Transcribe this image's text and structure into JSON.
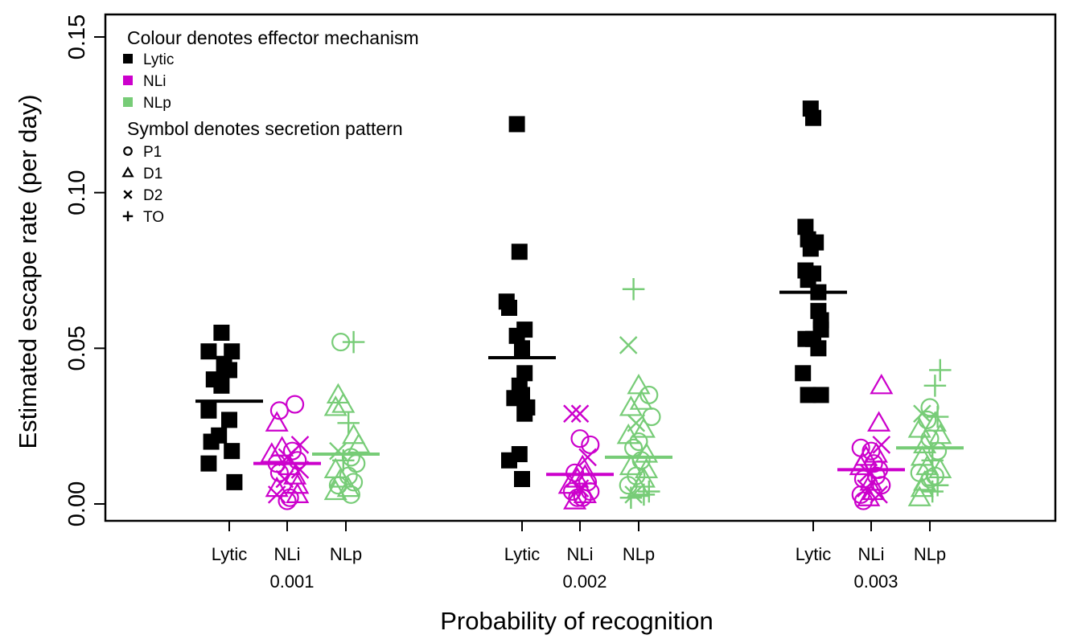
{
  "chart_data": {
    "type": "scatter",
    "ylabel": "Estimated escape rate (per day)",
    "xlabel": "Probability of recognition",
    "ylim": [
      0,
      0.15
    ],
    "y_ticks": [
      "0.00",
      "0.05",
      "0.10",
      "0.15"
    ],
    "groups": [
      "0.001",
      "0.002",
      "0.003"
    ],
    "mechanisms": [
      "Lytic",
      "NLi",
      "NLp"
    ],
    "colors": {
      "Lytic": "#000000",
      "NLi": "#cc00cc",
      "NLp": "#77cc77"
    },
    "legend": {
      "placement": "top-left",
      "colour_title": "Colour denotes effector mechanism",
      "colour_items": [
        "Lytic",
        "NLi",
        "NLp"
      ],
      "symbol_title": "Symbol denotes secretion pattern",
      "symbol_items": [
        {
          "label": "P1",
          "symbol": "circle"
        },
        {
          "label": "D1",
          "symbol": "triangle"
        },
        {
          "label": "D2",
          "symbol": "cross"
        },
        {
          "label": "TO",
          "symbol": "plus"
        }
      ]
    },
    "series": [
      {
        "group": "0.001",
        "mechanism": "Lytic",
        "mean": 0.033,
        "points": [
          {
            "x": -0.3,
            "y": 0.055,
            "s": "square"
          },
          {
            "x": -0.8,
            "y": 0.049,
            "s": "square"
          },
          {
            "x": 0.1,
            "y": 0.049,
            "s": "square"
          },
          {
            "x": -0.2,
            "y": 0.045,
            "s": "square"
          },
          {
            "x": 0.0,
            "y": 0.043,
            "s": "square"
          },
          {
            "x": -0.6,
            "y": 0.04,
            "s": "square"
          },
          {
            "x": -0.3,
            "y": 0.038,
            "s": "square"
          },
          {
            "x": -0.8,
            "y": 0.03,
            "s": "square"
          },
          {
            "x": 0.0,
            "y": 0.027,
            "s": "square"
          },
          {
            "x": -0.4,
            "y": 0.022,
            "s": "square"
          },
          {
            "x": -0.7,
            "y": 0.02,
            "s": "square"
          },
          {
            "x": 0.1,
            "y": 0.017,
            "s": "square"
          },
          {
            "x": -0.8,
            "y": 0.013,
            "s": "square"
          },
          {
            "x": 0.2,
            "y": 0.007,
            "s": "square"
          }
        ]
      },
      {
        "group": "0.001",
        "mechanism": "NLi",
        "mean": 0.013,
        "points": [
          {
            "x": 0.3,
            "y": 0.032,
            "s": "circle"
          },
          {
            "x": -0.3,
            "y": 0.03,
            "s": "circle"
          },
          {
            "x": -0.4,
            "y": 0.026,
            "s": "triangle"
          },
          {
            "x": 0.5,
            "y": 0.019,
            "s": "cross"
          },
          {
            "x": -0.2,
            "y": 0.018,
            "s": "triangle"
          },
          {
            "x": 0.2,
            "y": 0.017,
            "s": "circle"
          },
          {
            "x": -0.6,
            "y": 0.016,
            "s": "triangle"
          },
          {
            "x": 0.0,
            "y": 0.015,
            "s": "cross"
          },
          {
            "x": 0.4,
            "y": 0.014,
            "s": "circle"
          },
          {
            "x": -0.4,
            "y": 0.013,
            "s": "circle"
          },
          {
            "x": 0.1,
            "y": 0.012,
            "s": "triangle"
          },
          {
            "x": 0.5,
            "y": 0.011,
            "s": "cross"
          },
          {
            "x": -0.3,
            "y": 0.01,
            "s": "circle"
          },
          {
            "x": 0.3,
            "y": 0.009,
            "s": "triangle"
          },
          {
            "x": -0.1,
            "y": 0.008,
            "s": "cross"
          },
          {
            "x": 0.4,
            "y": 0.006,
            "s": "triangle"
          },
          {
            "x": -0.4,
            "y": 0.005,
            "s": "triangle"
          },
          {
            "x": -0.4,
            "y": 0.003,
            "s": "cross"
          },
          {
            "x": 0.4,
            "y": 0.003,
            "s": "triangle"
          },
          {
            "x": 0.1,
            "y": 0.002,
            "s": "circle"
          },
          {
            "x": 0.0,
            "y": 0.001,
            "s": "circle"
          }
        ]
      },
      {
        "group": "0.001",
        "mechanism": "NLp",
        "mean": 0.016,
        "points": [
          {
            "x": -0.2,
            "y": 0.052,
            "s": "circle"
          },
          {
            "x": 0.3,
            "y": 0.052,
            "s": "plus"
          },
          {
            "x": -0.3,
            "y": 0.035,
            "s": "triangle"
          },
          {
            "x": -0.1,
            "y": 0.032,
            "s": "triangle"
          },
          {
            "x": -0.4,
            "y": 0.031,
            "s": "triangle"
          },
          {
            "x": 0.1,
            "y": 0.026,
            "s": "plus"
          },
          {
            "x": 0.3,
            "y": 0.022,
            "s": "triangle"
          },
          {
            "x": 0.5,
            "y": 0.019,
            "s": "triangle"
          },
          {
            "x": -0.3,
            "y": 0.017,
            "s": "cross"
          },
          {
            "x": 0.2,
            "y": 0.015,
            "s": "circle"
          },
          {
            "x": -0.1,
            "y": 0.014,
            "s": "plus"
          },
          {
            "x": 0.4,
            "y": 0.013,
            "s": "circle"
          },
          {
            "x": -0.4,
            "y": 0.011,
            "s": "triangle"
          },
          {
            "x": 0.1,
            "y": 0.009,
            "s": "circle"
          },
          {
            "x": -0.2,
            "y": 0.008,
            "s": "triangle"
          },
          {
            "x": 0.3,
            "y": 0.007,
            "s": "circle"
          },
          {
            "x": -0.3,
            "y": 0.006,
            "s": "circle"
          },
          {
            "x": 0.1,
            "y": 0.005,
            "s": "triangle"
          },
          {
            "x": -0.4,
            "y": 0.004,
            "s": "triangle"
          },
          {
            "x": 0.2,
            "y": 0.003,
            "s": "circle"
          }
        ]
      },
      {
        "group": "0.002",
        "mechanism": "Lytic",
        "mean": 0.047,
        "points": [
          {
            "x": -0.2,
            "y": 0.122,
            "s": "square"
          },
          {
            "x": -0.1,
            "y": 0.081,
            "s": "square"
          },
          {
            "x": -0.6,
            "y": 0.065,
            "s": "square"
          },
          {
            "x": -0.5,
            "y": 0.063,
            "s": "square"
          },
          {
            "x": 0.1,
            "y": 0.056,
            "s": "square"
          },
          {
            "x": -0.2,
            "y": 0.054,
            "s": "square"
          },
          {
            "x": 0.0,
            "y": 0.05,
            "s": "square"
          },
          {
            "x": 0.1,
            "y": 0.042,
            "s": "square"
          },
          {
            "x": -0.1,
            "y": 0.038,
            "s": "square"
          },
          {
            "x": 0.0,
            "y": 0.035,
            "s": "square"
          },
          {
            "x": -0.3,
            "y": 0.034,
            "s": "square"
          },
          {
            "x": 0.2,
            "y": 0.031,
            "s": "square"
          },
          {
            "x": 0.1,
            "y": 0.029,
            "s": "square"
          },
          {
            "x": -0.1,
            "y": 0.016,
            "s": "square"
          },
          {
            "x": -0.5,
            "y": 0.014,
            "s": "square"
          },
          {
            "x": 0.0,
            "y": 0.008,
            "s": "square"
          }
        ]
      },
      {
        "group": "0.002",
        "mechanism": "NLi",
        "mean": 0.0095,
        "points": [
          {
            "x": -0.3,
            "y": 0.029,
            "s": "cross"
          },
          {
            "x": 0.0,
            "y": 0.029,
            "s": "cross"
          },
          {
            "x": 0.0,
            "y": 0.021,
            "s": "circle"
          },
          {
            "x": 0.4,
            "y": 0.019,
            "s": "circle"
          },
          {
            "x": 0.3,
            "y": 0.015,
            "s": "cross"
          },
          {
            "x": 0.1,
            "y": 0.012,
            "s": "triangle"
          },
          {
            "x": -0.2,
            "y": 0.01,
            "s": "circle"
          },
          {
            "x": 0.2,
            "y": 0.009,
            "s": "triangle"
          },
          {
            "x": -0.1,
            "y": 0.008,
            "s": "triangle"
          },
          {
            "x": 0.3,
            "y": 0.007,
            "s": "circle"
          },
          {
            "x": -0.4,
            "y": 0.006,
            "s": "triangle"
          },
          {
            "x": 0.0,
            "y": 0.005,
            "s": "cross"
          },
          {
            "x": 0.4,
            "y": 0.004,
            "s": "circle"
          },
          {
            "x": -0.3,
            "y": 0.004,
            "s": "circle"
          },
          {
            "x": 0.2,
            "y": 0.003,
            "s": "triangle"
          },
          {
            "x": -0.1,
            "y": 0.002,
            "s": "circle"
          },
          {
            "x": 0.1,
            "y": 0.002,
            "s": "circle"
          },
          {
            "x": -0.2,
            "y": 0.001,
            "s": "triangle"
          }
        ]
      },
      {
        "group": "0.002",
        "mechanism": "NLp",
        "mean": 0.015,
        "points": [
          {
            "x": -0.2,
            "y": 0.069,
            "s": "plus"
          },
          {
            "x": -0.4,
            "y": 0.051,
            "s": "cross"
          },
          {
            "x": 0.0,
            "y": 0.038,
            "s": "triangle"
          },
          {
            "x": 0.4,
            "y": 0.035,
            "s": "circle"
          },
          {
            "x": 0.1,
            "y": 0.033,
            "s": "triangle"
          },
          {
            "x": -0.3,
            "y": 0.031,
            "s": "triangle"
          },
          {
            "x": 0.5,
            "y": 0.028,
            "s": "circle"
          },
          {
            "x": -0.1,
            "y": 0.026,
            "s": "cross"
          },
          {
            "x": 0.2,
            "y": 0.024,
            "s": "triangle"
          },
          {
            "x": -0.4,
            "y": 0.022,
            "s": "triangle"
          },
          {
            "x": 0.0,
            "y": 0.02,
            "s": "circle"
          },
          {
            "x": -0.2,
            "y": 0.018,
            "s": "circle"
          },
          {
            "x": 0.3,
            "y": 0.016,
            "s": "triangle"
          },
          {
            "x": 0.1,
            "y": 0.014,
            "s": "circle"
          },
          {
            "x": -0.3,
            "y": 0.012,
            "s": "triangle"
          },
          {
            "x": 0.3,
            "y": 0.011,
            "s": "triangle"
          },
          {
            "x": -0.1,
            "y": 0.009,
            "s": "circle"
          },
          {
            "x": 0.2,
            "y": 0.008,
            "s": "triangle"
          },
          {
            "x": -0.4,
            "y": 0.006,
            "s": "circle"
          },
          {
            "x": 0.0,
            "y": 0.005,
            "s": "triangle"
          },
          {
            "x": 0.4,
            "y": 0.004,
            "s": "plus"
          },
          {
            "x": -0.2,
            "y": 0.003,
            "s": "cross"
          },
          {
            "x": 0.2,
            "y": 0.003,
            "s": "plus"
          },
          {
            "x": -0.3,
            "y": 0.002,
            "s": "plus"
          }
        ]
      },
      {
        "group": "0.003",
        "mechanism": "Lytic",
        "mean": 0.068,
        "points": [
          {
            "x": -0.1,
            "y": 0.127,
            "s": "square"
          },
          {
            "x": 0.0,
            "y": 0.124,
            "s": "square"
          },
          {
            "x": -0.3,
            "y": 0.089,
            "s": "square"
          },
          {
            "x": -0.2,
            "y": 0.085,
            "s": "square"
          },
          {
            "x": 0.1,
            "y": 0.084,
            "s": "square"
          },
          {
            "x": -0.1,
            "y": 0.082,
            "s": "square"
          },
          {
            "x": -0.3,
            "y": 0.075,
            "s": "square"
          },
          {
            "x": 0.0,
            "y": 0.074,
            "s": "square"
          },
          {
            "x": -0.2,
            "y": 0.072,
            "s": "square"
          },
          {
            "x": 0.2,
            "y": 0.068,
            "s": "square"
          },
          {
            "x": 0.2,
            "y": 0.062,
            "s": "square"
          },
          {
            "x": 0.3,
            "y": 0.059,
            "s": "square"
          },
          {
            "x": 0.3,
            "y": 0.056,
            "s": "square"
          },
          {
            "x": -0.3,
            "y": 0.053,
            "s": "square"
          },
          {
            "x": 0.0,
            "y": 0.053,
            "s": "square"
          },
          {
            "x": 0.2,
            "y": 0.05,
            "s": "square"
          },
          {
            "x": -0.4,
            "y": 0.042,
            "s": "square"
          },
          {
            "x": -0.2,
            "y": 0.035,
            "s": "square"
          },
          {
            "x": 0.3,
            "y": 0.035,
            "s": "square"
          }
        ]
      },
      {
        "group": "0.003",
        "mechanism": "NLi",
        "mean": 0.011,
        "points": [
          {
            "x": 0.4,
            "y": 0.038,
            "s": "triangle"
          },
          {
            "x": 0.3,
            "y": 0.026,
            "s": "triangle"
          },
          {
            "x": 0.4,
            "y": 0.019,
            "s": "cross"
          },
          {
            "x": -0.4,
            "y": 0.018,
            "s": "circle"
          },
          {
            "x": 0.0,
            "y": 0.017,
            "s": "circle"
          },
          {
            "x": 0.2,
            "y": 0.016,
            "s": "triangle"
          },
          {
            "x": -0.2,
            "y": 0.015,
            "s": "triangle"
          },
          {
            "x": 0.1,
            "y": 0.013,
            "s": "circle"
          },
          {
            "x": -0.4,
            "y": 0.012,
            "s": "triangle"
          },
          {
            "x": 0.3,
            "y": 0.011,
            "s": "circle"
          },
          {
            "x": -0.1,
            "y": 0.01,
            "s": "cross"
          },
          {
            "x": 0.2,
            "y": 0.009,
            "s": "circle"
          },
          {
            "x": -0.3,
            "y": 0.008,
            "s": "circle"
          },
          {
            "x": 0.0,
            "y": 0.007,
            "s": "triangle"
          },
          {
            "x": 0.4,
            "y": 0.006,
            "s": "circle"
          },
          {
            "x": -0.2,
            "y": 0.005,
            "s": "cross"
          },
          {
            "x": 0.1,
            "y": 0.004,
            "s": "triangle"
          },
          {
            "x": -0.4,
            "y": 0.003,
            "s": "circle"
          },
          {
            "x": 0.3,
            "y": 0.003,
            "s": "cross"
          },
          {
            "x": -0.1,
            "y": 0.002,
            "s": "triangle"
          },
          {
            "x": -0.3,
            "y": 0.001,
            "s": "circle"
          }
        ]
      },
      {
        "group": "0.003",
        "mechanism": "NLp",
        "mean": 0.018,
        "points": [
          {
            "x": 0.4,
            "y": 0.043,
            "s": "plus"
          },
          {
            "x": 0.2,
            "y": 0.038,
            "s": "plus"
          },
          {
            "x": 0.0,
            "y": 0.031,
            "s": "circle"
          },
          {
            "x": -0.3,
            "y": 0.029,
            "s": "cross"
          },
          {
            "x": 0.3,
            "y": 0.028,
            "s": "plus"
          },
          {
            "x": -0.1,
            "y": 0.027,
            "s": "circle"
          },
          {
            "x": 0.2,
            "y": 0.026,
            "s": "triangle"
          },
          {
            "x": -0.4,
            "y": 0.024,
            "s": "triangle"
          },
          {
            "x": 0.4,
            "y": 0.022,
            "s": "triangle"
          },
          {
            "x": 0.0,
            "y": 0.021,
            "s": "circle"
          },
          {
            "x": -0.2,
            "y": 0.019,
            "s": "triangle"
          },
          {
            "x": 0.3,
            "y": 0.017,
            "s": "circle"
          },
          {
            "x": -0.3,
            "y": 0.015,
            "s": "triangle"
          },
          {
            "x": 0.1,
            "y": 0.014,
            "s": "plus"
          },
          {
            "x": -0.1,
            "y": 0.012,
            "s": "triangle"
          },
          {
            "x": 0.4,
            "y": 0.011,
            "s": "triangle"
          },
          {
            "x": -0.4,
            "y": 0.01,
            "s": "circle"
          },
          {
            "x": 0.2,
            "y": 0.009,
            "s": "circle"
          },
          {
            "x": 0.0,
            "y": 0.008,
            "s": "circle"
          },
          {
            "x": -0.2,
            "y": 0.007,
            "s": "triangle"
          },
          {
            "x": 0.3,
            "y": 0.006,
            "s": "plus"
          },
          {
            "x": -0.3,
            "y": 0.005,
            "s": "triangle"
          },
          {
            "x": 0.1,
            "y": 0.004,
            "s": "plus"
          },
          {
            "x": -0.4,
            "y": 0.002,
            "s": "triangle"
          }
        ]
      }
    ]
  }
}
